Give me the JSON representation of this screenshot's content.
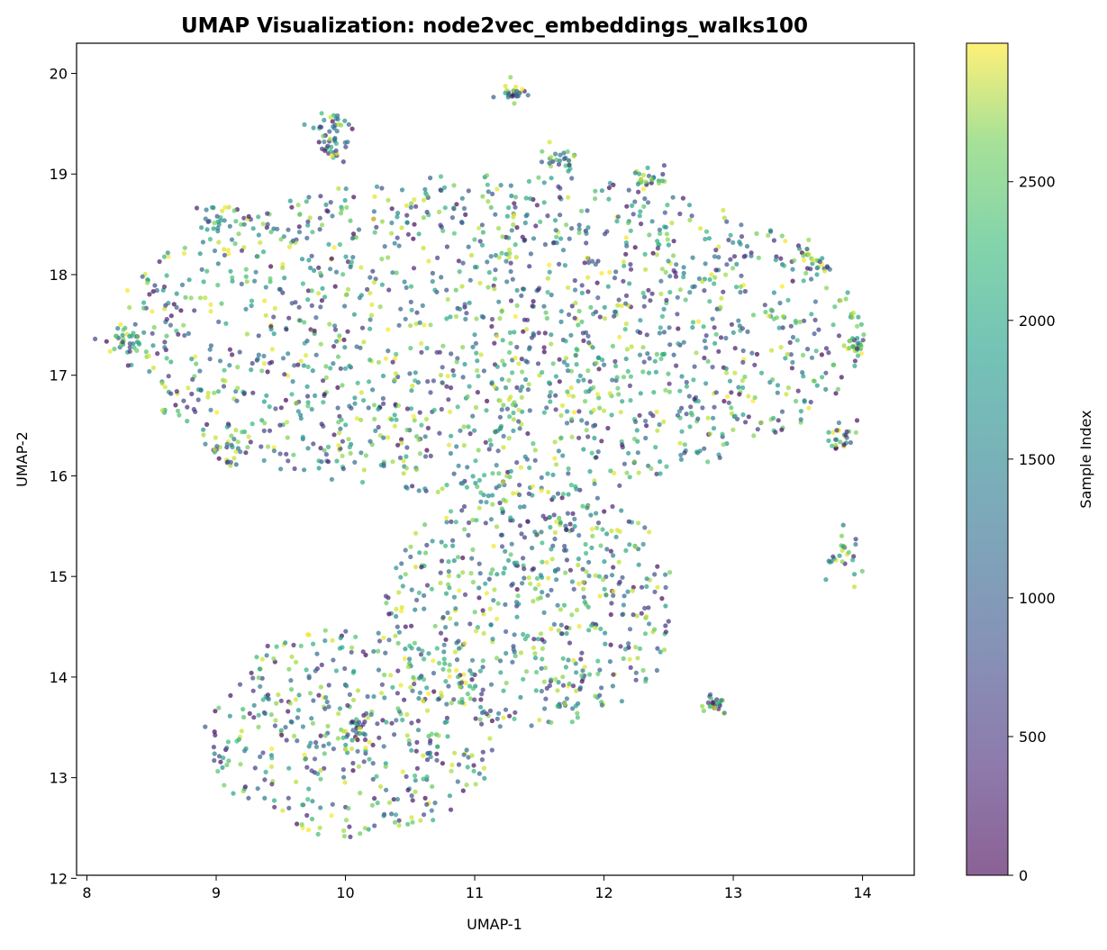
{
  "chart_data": {
    "type": "scatter",
    "title": "UMAP Visualization: node2vec_embeddings_walks100",
    "xlabel": "UMAP-1",
    "ylabel": "UMAP-2",
    "xlim": [
      7.92,
      14.4
    ],
    "ylim": [
      12.03,
      20.3
    ],
    "x_ticks": [
      8,
      9,
      10,
      11,
      12,
      13,
      14
    ],
    "y_ticks": [
      12,
      13,
      14,
      15,
      16,
      17,
      18,
      19,
      20
    ],
    "grid": false,
    "legend": "none",
    "point_count": 3000,
    "color_by": "sample index",
    "colormap": "viridis",
    "marker_alpha": 0.7,
    "colorbar": {
      "label": "Sample Index",
      "range": [
        0,
        2999
      ],
      "ticks": [
        0,
        500,
        1000,
        1500,
        2000,
        2500
      ]
    },
    "density_regions": [
      {
        "x_range": [
          8.2,
          14.0
        ],
        "y_range": [
          15.8,
          19.0
        ],
        "relative_density": 0.62
      },
      {
        "x_range": [
          8.9,
          11.2
        ],
        "y_range": [
          12.4,
          14.5
        ],
        "relative_density": 0.18
      },
      {
        "x_range": [
          10.3,
          12.6
        ],
        "y_range": [
          13.5,
          15.9
        ],
        "relative_density": 0.2
      }
    ],
    "cluster_highlights": [
      {
        "x": 9.85,
        "y": 19.5,
        "spread": 0.08
      },
      {
        "x": 11.3,
        "y": 19.8,
        "spread": 0.06
      },
      {
        "x": 11.65,
        "y": 19.15,
        "spread": 0.07
      },
      {
        "x": 12.35,
        "y": 18.95,
        "spread": 0.08
      },
      {
        "x": 9.0,
        "y": 18.55,
        "spread": 0.09
      },
      {
        "x": 9.05,
        "y": 16.25,
        "spread": 0.07
      },
      {
        "x": 8.3,
        "y": 17.35,
        "spread": 0.1
      },
      {
        "x": 13.6,
        "y": 18.15,
        "spread": 0.08
      },
      {
        "x": 13.85,
        "y": 16.4,
        "spread": 0.08
      },
      {
        "x": 13.85,
        "y": 15.2,
        "spread": 0.1
      },
      {
        "x": 12.85,
        "y": 13.75,
        "spread": 0.05
      },
      {
        "x": 10.05,
        "y": 13.5,
        "spread": 0.08
      },
      {
        "x": 9.9,
        "y": 19.25,
        "spread": 0.07
      },
      {
        "x": 13.95,
        "y": 17.3,
        "spread": 0.06
      }
    ]
  }
}
